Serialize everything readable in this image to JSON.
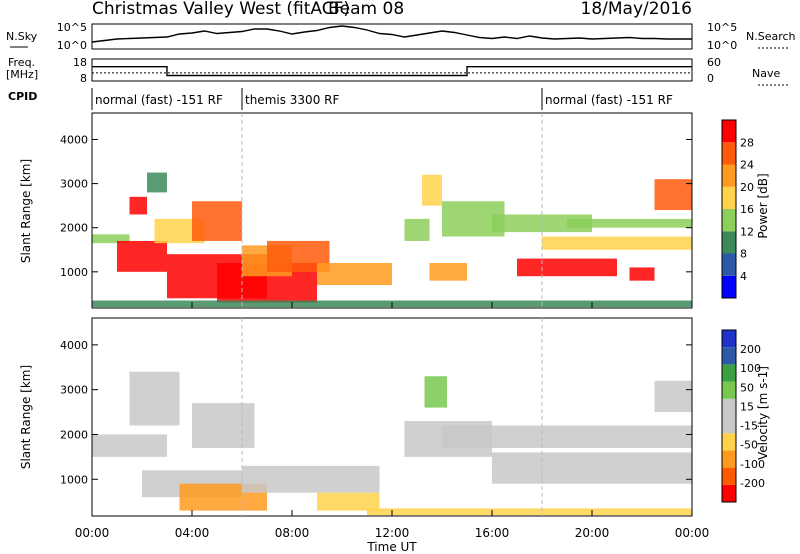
{
  "header": {
    "station": "Christmas Valley West (fitACF)",
    "beam": "Beam 08",
    "date": "18/May/2016"
  },
  "colors": {
    "power": [
      "#0000ff",
      "#2d5aa8",
      "#3c8a5a",
      "#8ccf5a",
      "#ffd24a",
      "#ff9a1e",
      "#ff5a0a",
      "#ff0000"
    ],
    "velocity": [
      "#ff0000",
      "#ff5a00",
      "#ff9a1e",
      "#ffd24a",
      "#c8c8c8",
      "#c8c8c8",
      "#78c850",
      "#3ca040",
      "#2d5aa8",
      "#1e32c8"
    ]
  },
  "chart_data": [
    {
      "type": "line",
      "panel": "noise",
      "left_label": "N.Sky",
      "right_label": "N.Search",
      "left_ticks": [
        "10^5",
        "10^0"
      ],
      "right_ticks": [
        "10^5",
        "10^0"
      ],
      "series": [
        {
          "name": "N.Sky",
          "x": [
            0,
            0.5,
            1,
            1.5,
            2,
            2.5,
            3,
            3.5,
            4,
            4.5,
            5,
            5.5,
            6,
            6.5,
            7,
            7.5,
            8,
            8.5,
            9,
            9.5,
            10,
            10.5,
            11,
            11.5,
            12,
            12.5,
            13,
            13.5,
            14,
            14.5,
            15,
            15.5,
            16,
            16.5,
            17,
            17.5,
            18,
            18.5,
            19,
            19.5,
            20,
            20.5,
            21,
            21.5,
            22,
            22.5,
            23,
            23.5,
            24
          ],
          "y": [
            1.4,
            1.7,
            2,
            2.1,
            2.2,
            2.3,
            2.4,
            3.0,
            3.2,
            3.6,
            3.1,
            3.3,
            3.5,
            4.0,
            4.0,
            3.6,
            3.0,
            3.4,
            3.7,
            4.3,
            4.6,
            4.3,
            3.8,
            3.1,
            2.9,
            2.4,
            2.8,
            3.2,
            3.6,
            3.3,
            2.8,
            2.3,
            2.1,
            2.4,
            2.1,
            2.6,
            2.2,
            2.0,
            2.1,
            2.2,
            2.0,
            2.1,
            2.2,
            2.3,
            2.1,
            2.1,
            2.0,
            2.0,
            2.0
          ]
        }
      ]
    },
    {
      "type": "line",
      "panel": "frequency",
      "left_label": "Freq. [MHz]",
      "right_label": "Nave",
      "left_ticks": [
        "18",
        "8"
      ],
      "right_ticks": [
        "60",
        "0"
      ],
      "series": [
        {
          "name": "Freq",
          "x": [
            0,
            3,
            3,
            15,
            15,
            24
          ],
          "y": [
            14.5,
            14.5,
            10.5,
            10.5,
            14.5,
            14.5
          ]
        },
        {
          "name": "Nave",
          "x": [
            0,
            24
          ],
          "y": [
            22,
            22
          ]
        }
      ]
    },
    {
      "type": "table",
      "panel": "cpid",
      "label": "CPID",
      "segments": [
        {
          "start": 0,
          "end": 6,
          "text": "normal (fast) -151 RF"
        },
        {
          "start": 6,
          "end": 18,
          "text": "themis 3300 RF"
        },
        {
          "start": 18,
          "end": 24,
          "text": "normal (fast) -151 RF"
        }
      ]
    },
    {
      "type": "heatmap",
      "panel": "power",
      "ylabel": "Slant Range [km]",
      "xlim": [
        0,
        24
      ],
      "ylim": [
        180,
        4600
      ],
      "yticks": [
        1000,
        2000,
        3000,
        4000
      ],
      "colorbar_label": "Power [dB]",
      "colorbar_ticks": [
        "28",
        "24",
        "20",
        "16",
        "12",
        "8",
        "4"
      ],
      "bands": [
        {
          "t": [
            0,
            1.5
          ],
          "r": [
            1650,
            1850
          ],
          "v": 12
        },
        {
          "t": [
            1,
            3
          ],
          "r": [
            1000,
            1700
          ],
          "v": 30
        },
        {
          "t": [
            1.5,
            2.2
          ],
          "r": [
            2300,
            2700
          ],
          "v": 28
        },
        {
          "t": [
            2.2,
            3.0
          ],
          "r": [
            2800,
            3250
          ],
          "v": 10
        },
        {
          "t": [
            2.5,
            4.5
          ],
          "r": [
            1650,
            2200
          ],
          "v": 18
        },
        {
          "t": [
            3,
            7
          ],
          "r": [
            400,
            1400
          ],
          "v": 30
        },
        {
          "t": [
            4,
            6
          ],
          "r": [
            1700,
            2600
          ],
          "v": 24
        },
        {
          "t": [
            5,
            9
          ],
          "r": [
            300,
            1200
          ],
          "v": 28
        },
        {
          "t": [
            6,
            8
          ],
          "r": [
            900,
            1600
          ],
          "v": 20
        },
        {
          "t": [
            7,
            9.5
          ],
          "r": [
            1000,
            1700
          ],
          "v": 24
        },
        {
          "t": [
            9,
            12
          ],
          "r": [
            700,
            1200
          ],
          "v": 22
        },
        {
          "t": [
            12.5,
            13.5
          ],
          "r": [
            1700,
            2200
          ],
          "v": 12
        },
        {
          "t": [
            13.2,
            14
          ],
          "r": [
            2500,
            3200
          ],
          "v": 18
        },
        {
          "t": [
            13.5,
            15
          ],
          "r": [
            800,
            1200
          ],
          "v": 22
        },
        {
          "t": [
            14,
            16.5
          ],
          "r": [
            1800,
            2600
          ],
          "v": 12
        },
        {
          "t": [
            16,
            20
          ],
          "r": [
            1900,
            2300
          ],
          "v": 14
        },
        {
          "t": [
            17,
            21
          ],
          "r": [
            900,
            1300
          ],
          "v": 30
        },
        {
          "t": [
            18,
            24
          ],
          "r": [
            1500,
            1800
          ],
          "v": 16
        },
        {
          "t": [
            19,
            24
          ],
          "r": [
            2000,
            2200
          ],
          "v": 12
        },
        {
          "t": [
            21.5,
            22.5
          ],
          "r": [
            800,
            1100
          ],
          "v": 28
        },
        {
          "t": [
            22.5,
            24
          ],
          "r": [
            2400,
            3100
          ],
          "v": 24
        },
        {
          "t": [
            0,
            24
          ],
          "r": [
            200,
            350
          ],
          "v": 8
        }
      ]
    },
    {
      "type": "heatmap",
      "panel": "velocity",
      "ylabel": "Slant Range [km]",
      "xlabel": "Time UT",
      "xlim": [
        0,
        24
      ],
      "ylim": [
        180,
        4600
      ],
      "yticks": [
        1000,
        2000,
        3000,
        4000
      ],
      "xticks": [
        "00:00",
        "04:00",
        "08:00",
        "12:00",
        "16:00",
        "20:00",
        "00:00"
      ],
      "colorbar_label": "Velocity [m s-1]",
      "colorbar_ticks": [
        "200",
        "100",
        "50",
        "15",
        "-15",
        "-50",
        "-100",
        "-200"
      ],
      "bands": [
        {
          "t": [
            0,
            3
          ],
          "r": [
            1500,
            2000
          ],
          "v": 0
        },
        {
          "t": [
            1.5,
            3.5
          ],
          "r": [
            2200,
            3400
          ],
          "v": 0
        },
        {
          "t": [
            2,
            6
          ],
          "r": [
            600,
            1200
          ],
          "v": 0
        },
        {
          "t": [
            4,
            6.5
          ],
          "r": [
            1700,
            2700
          ],
          "v": 0
        },
        {
          "t": [
            3.5,
            7
          ],
          "r": [
            300,
            900
          ],
          "v": -60
        },
        {
          "t": [
            6,
            11.5
          ],
          "r": [
            700,
            1300
          ],
          "v": 0
        },
        {
          "t": [
            9,
            11.5
          ],
          "r": [
            300,
            700
          ],
          "v": -40
        },
        {
          "t": [
            12.5,
            16
          ],
          "r": [
            1500,
            2300
          ],
          "v": 0
        },
        {
          "t": [
            13.3,
            14.2
          ],
          "r": [
            2600,
            3300
          ],
          "v": 30
        },
        {
          "t": [
            14,
            24
          ],
          "r": [
            1700,
            2200
          ],
          "v": 0
        },
        {
          "t": [
            16,
            24
          ],
          "r": [
            900,
            1600
          ],
          "v": 0
        },
        {
          "t": [
            22.5,
            24
          ],
          "r": [
            2500,
            3200
          ],
          "v": 0
        },
        {
          "t": [
            11,
            24
          ],
          "r": [
            200,
            350
          ],
          "v": -40
        }
      ]
    }
  ]
}
